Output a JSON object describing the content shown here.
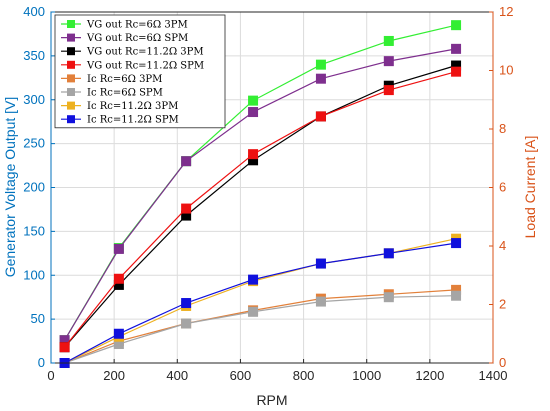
{
  "chart_data": {
    "type": "line",
    "xlabel": "RPM",
    "ylabel_left": "Generator Voltage Output [V]",
    "ylabel_right": "Load Current [A]",
    "xlim": [
      0,
      1400
    ],
    "ylim_left": [
      0,
      400
    ],
    "ylim_right": [
      0,
      12
    ],
    "x_ticks": [
      0,
      200,
      400,
      600,
      800,
      1000,
      1200,
      1400
    ],
    "y_left_ticks": [
      0,
      50,
      100,
      150,
      200,
      250,
      300,
      350,
      400
    ],
    "y_right_ticks": [
      0,
      2,
      4,
      6,
      8,
      10,
      12
    ],
    "grid": true,
    "legend_position": "top-left",
    "colors": {
      "left_axis": "#0072BD",
      "right_axis": "#D95319"
    },
    "x": [
      43,
      215,
      428,
      640,
      855,
      1070,
      1283
    ],
    "series": [
      {
        "name": "VG out Rc=6Ω 3PM",
        "axis": "left",
        "color": "#33ee33",
        "values": [
          26,
          131,
          230,
          299,
          340,
          367,
          385
        ]
      },
      {
        "name": "VG out Rc=6Ω SPM",
        "axis": "left",
        "color": "#7E2F8E",
        "values": [
          26,
          130,
          230,
          286,
          324,
          344,
          358
        ]
      },
      {
        "name": "VG out Rc=11.2Ω 3PM",
        "axis": "left",
        "color": "#000000",
        "values": [
          18,
          89,
          168,
          231,
          281,
          316,
          339
        ]
      },
      {
        "name": "VG out Rc=11.2Ω SPM",
        "axis": "left",
        "color": "#ee1111",
        "values": [
          18,
          96,
          176,
          238,
          281,
          311,
          332
        ]
      },
      {
        "name": "Ic Rc=6Ω 3PM",
        "axis": "right",
        "color": "#E2803A",
        "values": [
          0,
          0.75,
          1.35,
          1.8,
          2.2,
          2.35,
          2.5
        ]
      },
      {
        "name": "Ic Rc=6Ω SPM",
        "axis": "right",
        "color": "#A5A5A5",
        "values": [
          0,
          0.65,
          1.35,
          1.75,
          2.1,
          2.25,
          2.3
        ]
      },
      {
        "name": "Ic Rc=11.2Ω 3PM",
        "axis": "right",
        "color": "#EDB120",
        "values": [
          0,
          0.9,
          1.95,
          2.8,
          3.4,
          3.75,
          4.25
        ]
      },
      {
        "name": "Ic Rc=11.2Ω SPM",
        "axis": "right",
        "color": "#1010dd",
        "values": [
          0,
          1.0,
          2.05,
          2.85,
          3.4,
          3.75,
          4.1
        ]
      }
    ]
  }
}
